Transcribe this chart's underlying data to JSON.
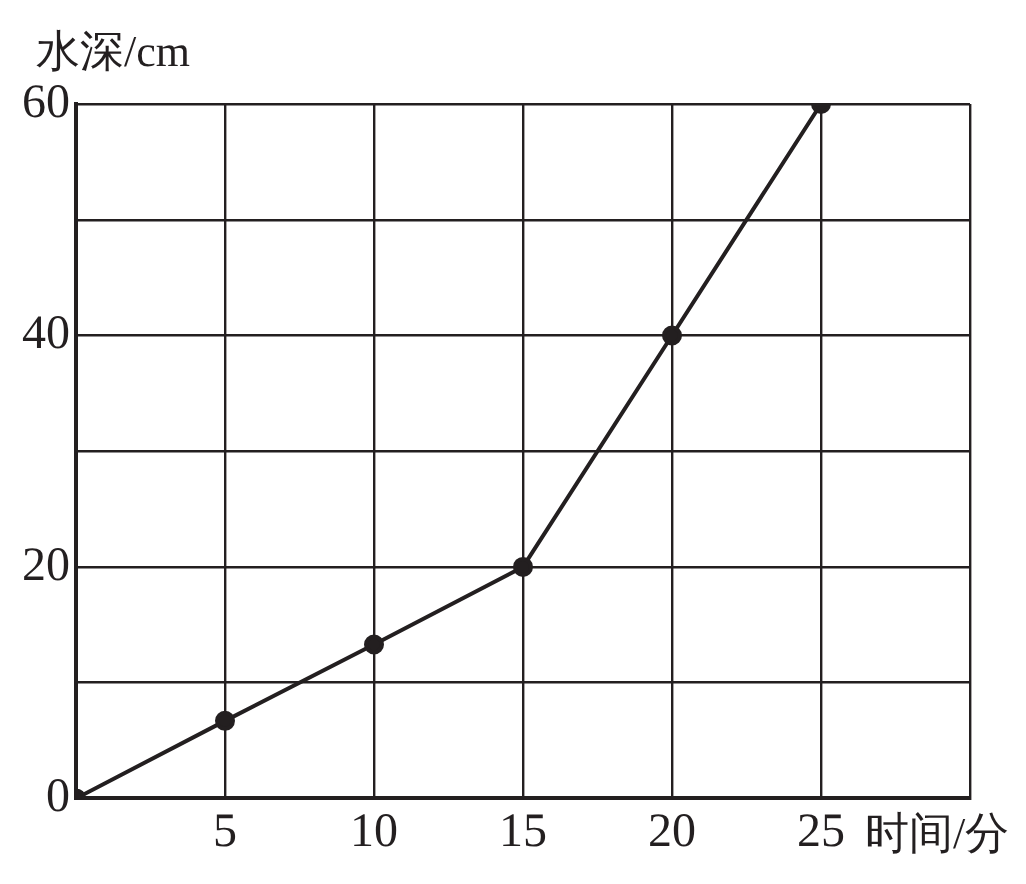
{
  "chart_data": {
    "type": "line",
    "xlabel": "时间/分",
    "ylabel": "水深/cm",
    "x": [
      0,
      5,
      10,
      15,
      20,
      25
    ],
    "series": [
      {
        "color": "#231f20",
        "values": [
          0,
          6.7,
          13.3,
          20,
          40,
          60
        ]
      }
    ],
    "xlim": [
      0,
      30
    ],
    "xticks": [
      {
        "value": 0,
        "label": null
      },
      5,
      10,
      15,
      20,
      25,
      {
        "value": 30,
        "label": null
      }
    ],
    "ylim": [
      0,
      60
    ],
    "yticks": [
      0,
      {
        "value": 10,
        "label": null
      },
      20,
      {
        "value": 30,
        "label": null
      },
      40,
      {
        "value": 50,
        "label": null
      },
      60
    ],
    "grid": true,
    "legend": false,
    "marker": "circle",
    "line_style": "solid"
  }
}
